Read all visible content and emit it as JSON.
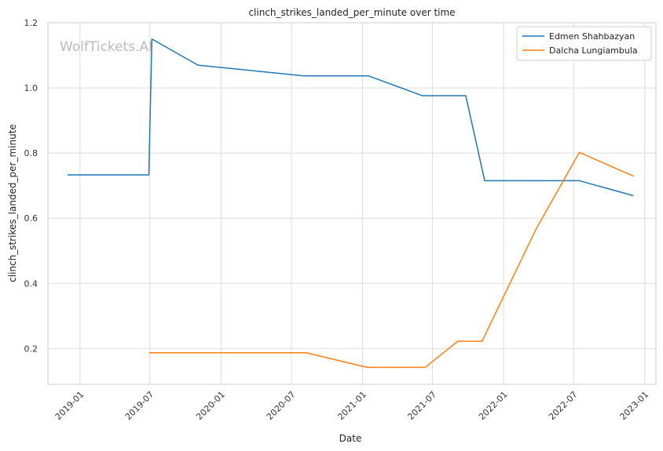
{
  "watermark": "WolfTickets.AI",
  "chart_data": {
    "type": "line",
    "title": "clinch_strikes_landed_per_minute over time",
    "xlabel": "Date",
    "ylabel": "clinch_strikes_landed_per_minute",
    "xlim": [
      "2018-10-10",
      "2023-01-30"
    ],
    "ylim": [
      0.09,
      1.2
    ],
    "x_ticks": [
      "2019-01",
      "2019-07",
      "2020-01",
      "2020-07",
      "2021-01",
      "2021-07",
      "2022-01",
      "2022-07",
      "2023-01"
    ],
    "y_ticks": [
      0.2,
      0.4,
      0.6,
      0.8,
      1.0,
      1.2
    ],
    "y_tick_labels": [
      "0.2",
      "0.4",
      "0.6",
      "0.8",
      "1.0",
      "1.2"
    ],
    "grid": true,
    "legend_position": "top-right",
    "series": [
      {
        "name": "Edmen Shahbazyan",
        "color": "#1f77b4",
        "points": [
          {
            "x": "2018-11-30",
            "y": 0.733
          },
          {
            "x": "2019-06-28",
            "y": 0.733
          },
          {
            "x": "2019-07-06",
            "y": 1.15
          },
          {
            "x": "2019-11-02",
            "y": 1.07
          },
          {
            "x": "2020-08-01",
            "y": 1.037
          },
          {
            "x": "2021-01-16",
            "y": 1.037
          },
          {
            "x": "2021-06-05",
            "y": 0.976
          },
          {
            "x": "2021-09-25",
            "y": 0.976
          },
          {
            "x": "2021-11-13",
            "y": 0.715
          },
          {
            "x": "2022-07-16",
            "y": 0.715
          },
          {
            "x": "2022-12-03",
            "y": 0.669
          }
        ]
      },
      {
        "name": "Dalcha Lungiambula",
        "color": "#ff7f0e",
        "points": [
          {
            "x": "2019-06-29",
            "y": 0.187
          },
          {
            "x": "2020-08-08",
            "y": 0.187
          },
          {
            "x": "2021-01-13",
            "y": 0.142
          },
          {
            "x": "2021-06-12",
            "y": 0.142
          },
          {
            "x": "2021-09-04",
            "y": 0.222
          },
          {
            "x": "2021-11-06",
            "y": 0.222
          },
          {
            "x": "2022-03-26",
            "y": 0.567
          },
          {
            "x": "2022-07-16",
            "y": 0.802
          },
          {
            "x": "2022-12-03",
            "y": 0.729
          }
        ]
      }
    ]
  }
}
